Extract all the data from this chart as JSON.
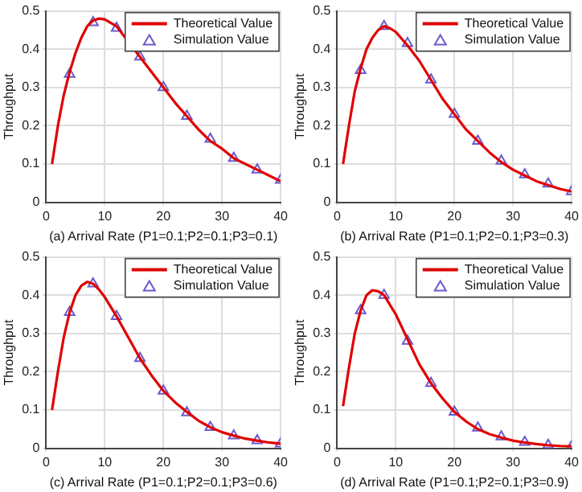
{
  "chart_data": [
    {
      "type": "line",
      "xlabel": "(a) Arrival Rate (P1=0.1;P2=0.1;P3=0.1)",
      "ylabel": "Throughput",
      "xlim": [
        0,
        40
      ],
      "xticks": [
        0,
        10,
        20,
        30,
        40
      ],
      "ylim": [
        0,
        0.5
      ],
      "yticks": [
        0,
        0.1,
        0.2,
        0.3,
        0.4,
        0.5
      ],
      "grid": true,
      "legend": "top right",
      "series": [
        {
          "name": "Theoretical Value",
          "type": "line",
          "color": "#e00000",
          "marker": "none",
          "line_style": "solid",
          "x": [
            1,
            2,
            3,
            4,
            5,
            6,
            7,
            8,
            9,
            10,
            12,
            14,
            16,
            18,
            20,
            22,
            24,
            26,
            28,
            30,
            32,
            34,
            36,
            38,
            40
          ],
          "values": [
            0.1,
            0.2,
            0.28,
            0.34,
            0.39,
            0.43,
            0.46,
            0.475,
            0.48,
            0.478,
            0.46,
            0.42,
            0.38,
            0.34,
            0.3,
            0.26,
            0.225,
            0.19,
            0.16,
            0.14,
            0.115,
            0.1,
            0.085,
            0.07,
            0.055
          ]
        },
        {
          "name": "Simulation Value",
          "type": "scatter",
          "color": "#6a5acd",
          "marker": "triangle",
          "x": [
            4,
            8,
            12,
            16,
            20,
            24,
            28,
            32,
            36,
            40
          ],
          "values": [
            0.335,
            0.47,
            0.455,
            0.38,
            0.3,
            0.225,
            0.165,
            0.115,
            0.085,
            0.058
          ]
        }
      ]
    },
    {
      "type": "line",
      "xlabel": "(b) Arrival Rate (P1=0.1;P2=0.1;P3=0.3)",
      "ylabel": "Throughput",
      "xlim": [
        0,
        40
      ],
      "xticks": [
        0,
        10,
        20,
        30,
        40
      ],
      "ylim": [
        0,
        0.5
      ],
      "yticks": [
        0,
        0.1,
        0.2,
        0.3,
        0.4,
        0.5
      ],
      "grid": true,
      "legend": "top right",
      "series": [
        {
          "name": "Theoretical Value",
          "type": "line",
          "color": "#e00000",
          "marker": "none",
          "line_style": "solid",
          "x": [
            1,
            2,
            3,
            4,
            5,
            6,
            7,
            8,
            9,
            10,
            12,
            14,
            16,
            18,
            20,
            22,
            24,
            26,
            28,
            30,
            32,
            34,
            36,
            38,
            40
          ],
          "values": [
            0.1,
            0.2,
            0.29,
            0.35,
            0.4,
            0.43,
            0.45,
            0.46,
            0.455,
            0.445,
            0.41,
            0.37,
            0.32,
            0.27,
            0.23,
            0.19,
            0.16,
            0.13,
            0.105,
            0.085,
            0.07,
            0.055,
            0.045,
            0.035,
            0.028
          ]
        },
        {
          "name": "Simulation Value",
          "type": "scatter",
          "color": "#6a5acd",
          "marker": "triangle",
          "x": [
            4,
            8,
            12,
            16,
            20,
            24,
            28,
            32,
            36,
            40
          ],
          "values": [
            0.345,
            0.46,
            0.415,
            0.32,
            0.23,
            0.16,
            0.108,
            0.072,
            0.048,
            0.028
          ]
        }
      ]
    },
    {
      "type": "line",
      "xlabel": "(c) Arrival Rate (P1=0.1;P2=0.1;P3=0.6)",
      "ylabel": "Throughput",
      "xlim": [
        0,
        40
      ],
      "xticks": [
        0,
        10,
        20,
        30,
        40
      ],
      "ylim": [
        0,
        0.5
      ],
      "yticks": [
        0,
        0.1,
        0.2,
        0.3,
        0.4,
        0.5
      ],
      "grid": true,
      "legend": "top right",
      "series": [
        {
          "name": "Theoretical Value",
          "type": "line",
          "color": "#e00000",
          "marker": "none",
          "line_style": "solid",
          "x": [
            1,
            2,
            3,
            4,
            5,
            6,
            7,
            8,
            9,
            10,
            12,
            14,
            16,
            18,
            20,
            22,
            24,
            26,
            28,
            30,
            32,
            34,
            36,
            38,
            40
          ],
          "values": [
            0.1,
            0.2,
            0.29,
            0.355,
            0.4,
            0.425,
            0.435,
            0.43,
            0.415,
            0.395,
            0.345,
            0.29,
            0.235,
            0.19,
            0.15,
            0.12,
            0.095,
            0.072,
            0.055,
            0.042,
            0.033,
            0.025,
            0.02,
            0.015,
            0.012
          ]
        },
        {
          "name": "Simulation Value",
          "type": "scatter",
          "color": "#6a5acd",
          "marker": "triangle",
          "x": [
            4,
            8,
            12,
            16,
            20,
            24,
            28,
            32,
            36,
            40
          ],
          "values": [
            0.355,
            0.43,
            0.345,
            0.235,
            0.15,
            0.093,
            0.055,
            0.033,
            0.02,
            0.012
          ]
        }
      ]
    },
    {
      "type": "line",
      "xlabel": "(d) Arrival Rate (P1=0.1;P2=0.1;P3=0.9)",
      "ylabel": "Throughput",
      "xlim": [
        0,
        40
      ],
      "xticks": [
        0,
        10,
        20,
        30,
        40
      ],
      "ylim": [
        0,
        0.5
      ],
      "yticks": [
        0,
        0.1,
        0.2,
        0.3,
        0.4,
        0.5
      ],
      "grid": true,
      "legend": "top right",
      "series": [
        {
          "name": "Theoretical Value",
          "type": "line",
          "color": "#e00000",
          "marker": "none",
          "line_style": "solid",
          "x": [
            1,
            2,
            3,
            4,
            5,
            6,
            7,
            8,
            9,
            10,
            12,
            14,
            16,
            18,
            20,
            22,
            24,
            26,
            28,
            30,
            32,
            34,
            36,
            38,
            40
          ],
          "values": [
            0.11,
            0.21,
            0.3,
            0.36,
            0.4,
            0.413,
            0.41,
            0.4,
            0.375,
            0.35,
            0.285,
            0.22,
            0.17,
            0.13,
            0.095,
            0.07,
            0.05,
            0.037,
            0.028,
            0.02,
            0.015,
            0.011,
            0.008,
            0.006,
            0.005
          ]
        },
        {
          "name": "Simulation Value",
          "type": "scatter",
          "color": "#6a5acd",
          "marker": "triangle",
          "x": [
            4,
            8,
            12,
            16,
            20,
            24,
            28,
            32,
            36,
            40
          ],
          "values": [
            0.36,
            0.4,
            0.28,
            0.17,
            0.095,
            0.053,
            0.03,
            0.016,
            0.008,
            0.005
          ]
        }
      ]
    }
  ]
}
